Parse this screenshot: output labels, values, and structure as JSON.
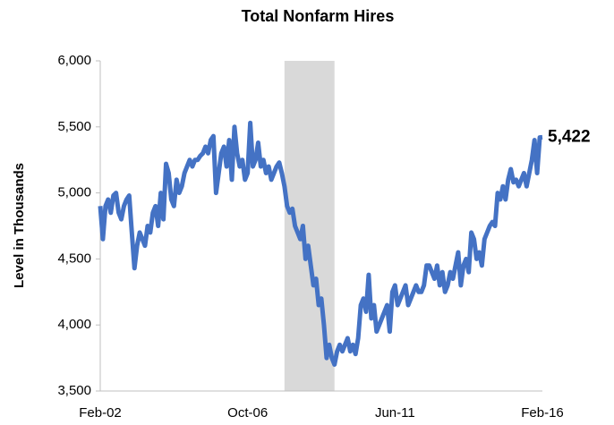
{
  "chart_data": {
    "type": "line",
    "title": "Total Nonfarm Hires",
    "y_label": "Level in Thousands",
    "categories": [
      "Feb-02",
      null,
      null,
      null,
      null,
      null,
      null,
      null,
      null,
      null,
      null,
      null,
      null,
      null,
      null,
      null,
      null,
      null,
      null,
      null,
      null,
      null,
      null,
      null,
      null,
      null,
      null,
      null,
      null,
      null,
      null,
      null,
      null,
      null,
      null,
      null,
      null,
      null,
      null,
      null,
      null,
      null,
      null,
      null,
      null,
      null,
      null,
      null,
      null,
      null,
      null,
      null,
      null,
      null,
      null,
      null,
      "Oct-06",
      null,
      null,
      null,
      null,
      null,
      null,
      null,
      null,
      null,
      null,
      null,
      null,
      null,
      null,
      null,
      null,
      null,
      null,
      null,
      null,
      null,
      null,
      null,
      null,
      null,
      null,
      null,
      null,
      null,
      null,
      null,
      null,
      null,
      null,
      null,
      null,
      null,
      null,
      null,
      null,
      null,
      null,
      null,
      null,
      null,
      null,
      null,
      null,
      null,
      null,
      null,
      null,
      null,
      null,
      null,
      "Jun-11",
      null,
      null,
      null,
      null,
      null,
      null,
      null,
      null,
      null,
      null,
      null,
      null,
      null,
      null,
      null,
      null,
      null,
      null,
      null,
      null,
      null,
      null,
      null,
      null,
      null,
      null,
      null,
      null,
      null,
      null,
      null,
      null,
      null,
      null,
      null,
      null,
      null,
      null,
      null,
      null,
      null,
      null,
      null,
      null,
      null,
      null,
      null,
      null,
      null,
      null,
      null,
      null,
      null,
      null,
      null,
      "Feb-16"
    ],
    "values": [
      4900,
      4650,
      4900,
      4950,
      4850,
      4980,
      5000,
      4850,
      4800,
      4900,
      4950,
      4980,
      4700,
      4430,
      4600,
      4700,
      4650,
      4600,
      4750,
      4700,
      4850,
      4900,
      4750,
      5000,
      4800,
      5220,
      5150,
      4950,
      4900,
      5100,
      5000,
      5050,
      5150,
      5200,
      5250,
      5200,
      5250,
      5250,
      5280,
      5300,
      5350,
      5300,
      5400,
      5430,
      5000,
      5150,
      5300,
      5350,
      5200,
      5400,
      5100,
      5500,
      5300,
      5200,
      5250,
      5100,
      5150,
      5530,
      5200,
      5250,
      5380,
      5200,
      5250,
      5150,
      5200,
      5100,
      5150,
      5200,
      5230,
      5150,
      5050,
      4900,
      4850,
      4880,
      4750,
      4700,
      4650,
      4750,
      4500,
      4600,
      4450,
      4300,
      4350,
      4150,
      4200,
      4000,
      3750,
      3850,
      3750,
      3700,
      3800,
      3850,
      3800,
      3850,
      3900,
      3800,
      3850,
      3780,
      3900,
      4150,
      4200,
      4100,
      4380,
      4050,
      4150,
      3950,
      4000,
      4050,
      4100,
      4150,
      3950,
      4250,
      4300,
      4150,
      4200,
      4250,
      4300,
      4150,
      4200,
      4250,
      4300,
      4250,
      4250,
      4300,
      4450,
      4450,
      4400,
      4350,
      4450,
      4300,
      4400,
      4250,
      4300,
      4400,
      4350,
      4450,
      4550,
      4300,
      4450,
      4500,
      4400,
      4700,
      4650,
      4500,
      4550,
      4450,
      4650,
      4700,
      4750,
      4780,
      4750,
      5000,
      4950,
      5050,
      4950,
      5100,
      5180,
      5080,
      5100,
      5050,
      5100,
      5150,
      5050,
      5150,
      5250,
      5400,
      5150,
      5420,
      5422
    ],
    "end_label": "5,422",
    "color": "#4472c4",
    "shaded_range": [
      70,
      89
    ],
    "shade_color": "#d9d9d9",
    "ylim": [
      3500,
      6000
    ],
    "yticks": [
      {
        "value": 3500,
        "label": "3,500"
      },
      {
        "value": 4000,
        "label": "4,000"
      },
      {
        "value": 4500,
        "label": "4,500"
      },
      {
        "value": 5000,
        "label": "5,000"
      },
      {
        "value": 5500,
        "label": "5,500"
      },
      {
        "value": 6000,
        "label": "6,000"
      }
    ]
  }
}
